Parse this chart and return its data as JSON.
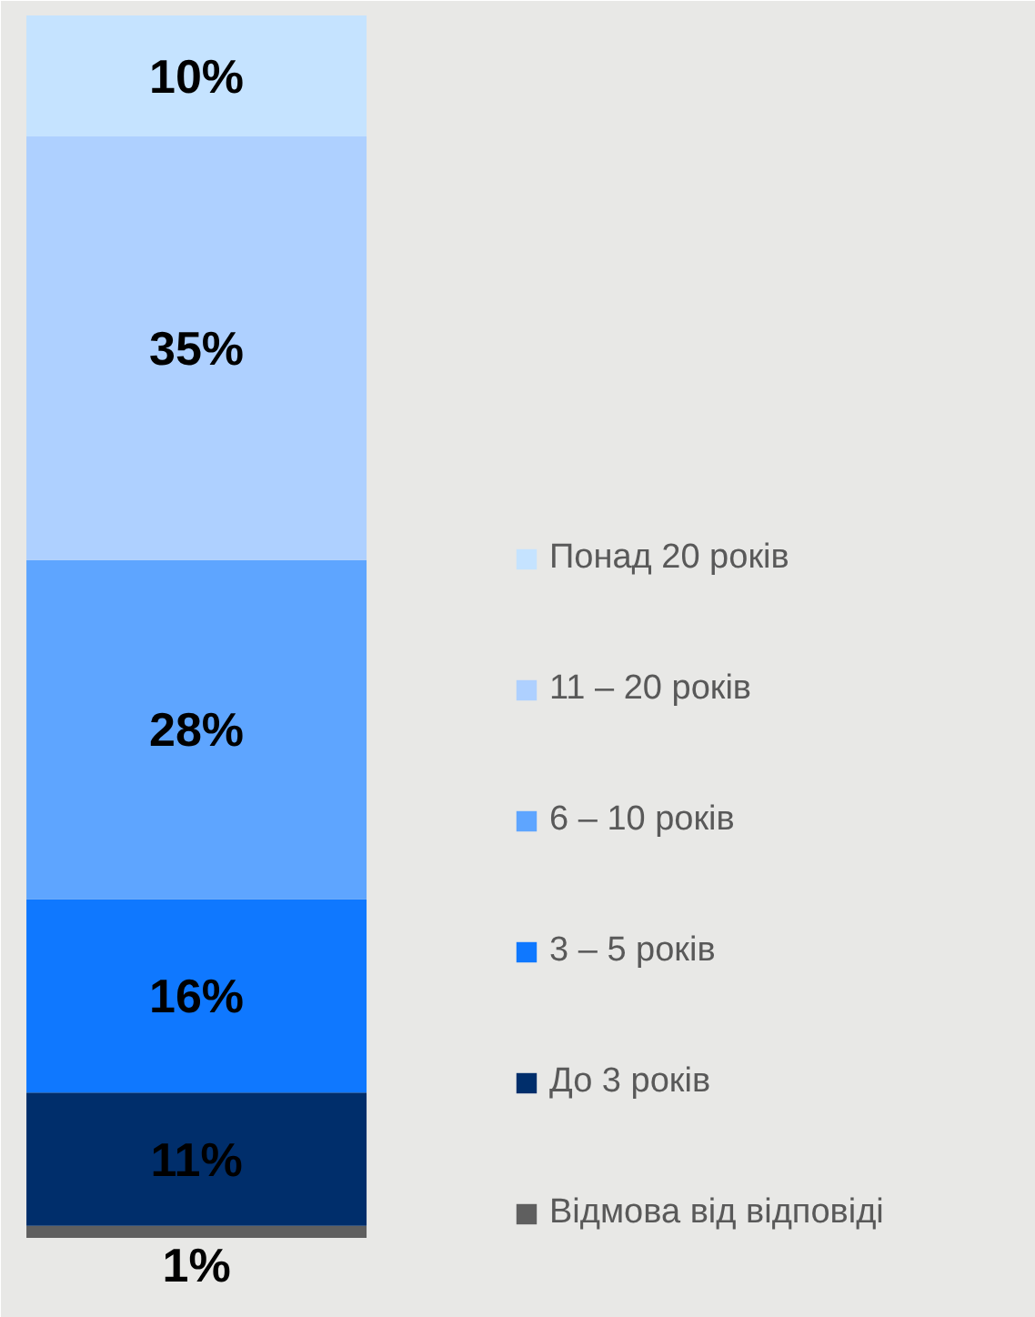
{
  "chart_data": {
    "type": "bar",
    "stacked": true,
    "categories": [
      null
    ],
    "legend": "right",
    "series": [
      {
        "name": "Відмова від відповіді",
        "color": "#5f5f5f",
        "values": [
          1
        ],
        "value_labels": [
          "1%"
        ]
      },
      {
        "name": "До 3 років",
        "color": "#002e6b",
        "values": [
          11
        ],
        "value_labels": [
          "11%"
        ]
      },
      {
        "name": "3 – 5 років",
        "color": "#0f78ff",
        "values": [
          16
        ],
        "value_labels": [
          "16%"
        ]
      },
      {
        "name": "6 – 10 років",
        "color": "#5ea5ff",
        "values": [
          28
        ],
        "value_labels": [
          "28%"
        ]
      },
      {
        "name": "11 – 20 років",
        "color": "#aed0ff",
        "values": [
          35
        ],
        "value_labels": [
          "35%"
        ]
      },
      {
        "name": "Понад 20 років",
        "color": "#c5e3ff",
        "values": [
          10
        ],
        "value_labels": [
          "10%"
        ]
      }
    ]
  }
}
